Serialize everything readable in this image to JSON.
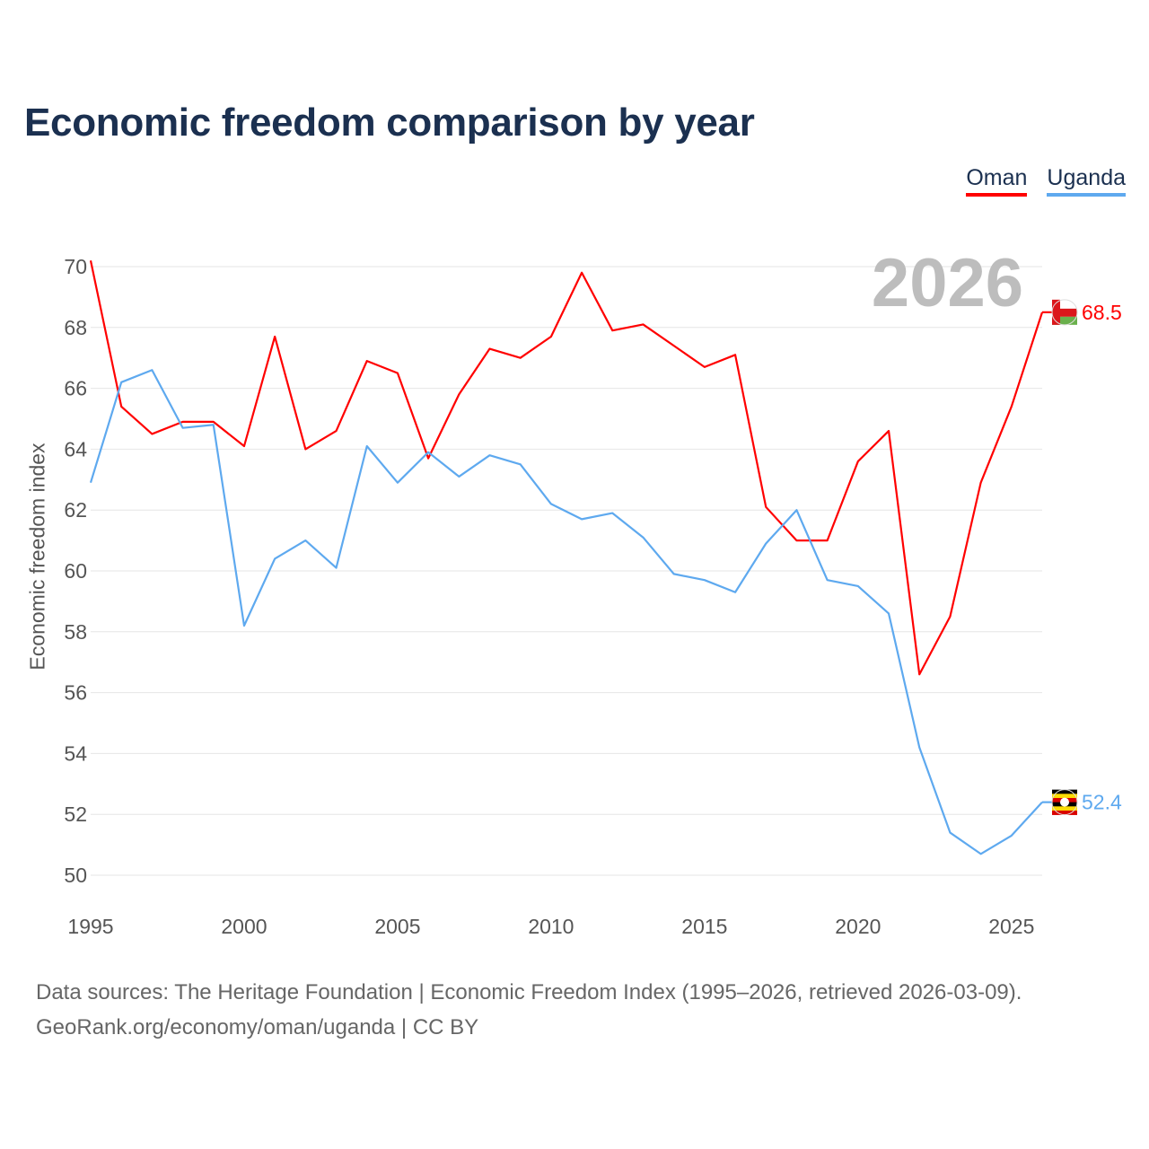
{
  "chart_data": {
    "type": "line",
    "title": "Economic freedom comparison by year",
    "xlabel": "",
    "ylabel": "Economic freedom index",
    "xlim": [
      1995,
      2026
    ],
    "ylim": [
      50,
      70
    ],
    "x_ticks": [
      "1995",
      "2000",
      "2005",
      "2010",
      "2015",
      "2020",
      "2025"
    ],
    "y_ticks": [
      "50",
      "52",
      "54",
      "56",
      "58",
      "60",
      "62",
      "64",
      "66",
      "68",
      "70"
    ],
    "grid": true,
    "legend_position": "top-right",
    "year_label": "2026",
    "x": [
      1995,
      1996,
      1997,
      1998,
      1999,
      2000,
      2001,
      2002,
      2003,
      2004,
      2005,
      2006,
      2007,
      2008,
      2009,
      2010,
      2011,
      2012,
      2013,
      2014,
      2015,
      2016,
      2017,
      2018,
      2019,
      2020,
      2021,
      2022,
      2023,
      2024,
      2025,
      2026
    ],
    "series": [
      {
        "name": "Oman",
        "color": "#ff0000",
        "end_label": "68.5",
        "values": [
          70.2,
          65.4,
          64.5,
          64.9,
          64.9,
          64.1,
          67.7,
          64.0,
          64.6,
          66.9,
          66.5,
          63.7,
          65.8,
          67.3,
          67.0,
          67.7,
          69.8,
          67.9,
          68.1,
          67.4,
          66.7,
          67.1,
          62.1,
          61.0,
          61.0,
          63.6,
          64.6,
          56.6,
          58.5,
          62.9,
          65.4,
          68.5
        ]
      },
      {
        "name": "Uganda",
        "color": "#5ea9ef",
        "end_label": "52.4",
        "values": [
          62.9,
          66.2,
          66.6,
          64.7,
          64.8,
          58.2,
          60.4,
          61.0,
          60.1,
          64.1,
          62.9,
          63.9,
          63.1,
          63.8,
          63.5,
          62.2,
          61.7,
          61.9,
          61.1,
          59.9,
          59.7,
          59.3,
          60.9,
          62.0,
          59.7,
          59.5,
          58.6,
          54.2,
          51.4,
          50.7,
          51.3,
          52.4
        ]
      }
    ]
  },
  "footer": {
    "line1": "Data sources: The Heritage Foundation | Economic Freedom Index (1995–2026, retrieved 2026-03-09).",
    "line2": "GeoRank.org/economy/oman/uganda | CC BY"
  }
}
